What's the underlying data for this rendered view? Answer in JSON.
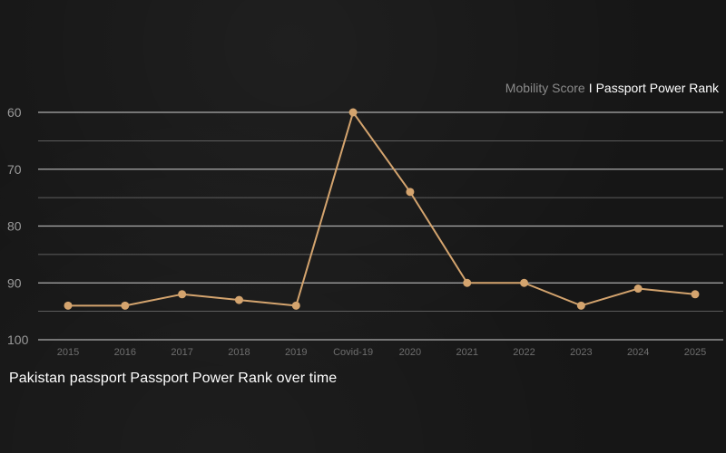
{
  "toggle": {
    "options": [
      "Mobility Score",
      "Passport Power Rank"
    ],
    "separator": "I",
    "active": "Passport Power Rank"
  },
  "colors": {
    "background": "#161616",
    "line": "#d4a46e",
    "grid": "#bdbdbd",
    "tick_label": "#6e6e6e",
    "y_tick_label": "#9a9a9a"
  },
  "chart_data": {
    "type": "line",
    "title": "Pakistan passport Passport Power Rank over time",
    "categories": [
      "2015",
      "2016",
      "2017",
      "2018",
      "2019",
      "Covid-19",
      "2020",
      "2021",
      "2022",
      "2023",
      "2024",
      "2025"
    ],
    "series": [
      {
        "values": [
          94,
          94,
          92,
          93,
          94,
          60,
          74,
          90,
          90,
          94,
          91,
          92
        ]
      }
    ],
    "y_axis": {
      "inverted": true,
      "ylim": [
        60,
        100
      ],
      "major_ticks": [
        60,
        70,
        80,
        90,
        100
      ],
      "minor_gridlines": [
        65,
        75,
        85,
        95
      ],
      "grid": true
    },
    "xlabel": "",
    "ylabel": ""
  }
}
